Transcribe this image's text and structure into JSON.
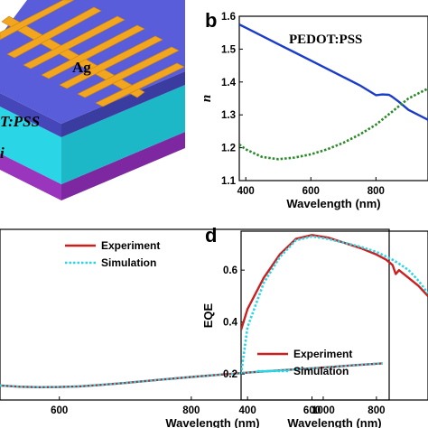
{
  "panel_a": {
    "labels": [
      "Ag",
      "T:PSS",
      "i"
    ],
    "colors": {
      "electrode": "#f2a51f",
      "top_layer": "#5a5dd9",
      "middle_layer": "#2ad6e6",
      "bottom_layer": "#a03ac2"
    }
  },
  "chart_data": [
    {
      "panel": "b",
      "type": "line",
      "annotation": "PEDOT:PSS",
      "xlabel": "Wavelength (nm)",
      "ylabel": "n",
      "xlim": [
        380,
        960
      ],
      "ylim": [
        1.1,
        1.6
      ],
      "xticks": [
        400,
        600,
        800
      ],
      "yticks": [
        1.1,
        1.2,
        1.3,
        1.4,
        1.5,
        1.6
      ],
      "series": [
        {
          "style": "solid",
          "color": "#1a3cc8",
          "x": [
            380,
            400,
            450,
            500,
            550,
            600,
            650,
            700,
            750,
            800,
            820,
            840,
            850,
            870,
            900,
            930,
            960
          ],
          "y": [
            1.575,
            1.565,
            1.54,
            1.515,
            1.49,
            1.465,
            1.44,
            1.415,
            1.39,
            1.36,
            1.362,
            1.361,
            1.355,
            1.34,
            1.315,
            1.3,
            1.285
          ]
        },
        {
          "style": "dotted",
          "color": "#2a8a2a",
          "x": [
            380,
            400,
            450,
            500,
            550,
            600,
            650,
            700,
            750,
            800,
            850,
            900,
            930,
            960
          ],
          "y": [
            1.21,
            1.195,
            1.172,
            1.165,
            1.17,
            1.18,
            1.195,
            1.215,
            1.24,
            1.27,
            1.31,
            1.35,
            1.365,
            1.38
          ]
        }
      ]
    },
    {
      "panel": "c",
      "type": "line",
      "xlabel": "Wavelength (nm)",
      "ylabel": "",
      "xlim": [
        510,
        1100
      ],
      "ylim": [
        0,
        1
      ],
      "xticks": [
        600,
        800,
        1000
      ],
      "tick_labels_x": [
        "600",
        "800",
        "1000"
      ],
      "legend": "top-right",
      "series": [
        {
          "name": "Experiment",
          "style": "solid",
          "color": "#cc1f1f",
          "x": [
            510,
            540,
            570,
            600,
            630,
            660,
            700,
            750,
            800,
            850,
            900,
            950,
            1000,
            1050,
            1090
          ],
          "y": [
            0.085,
            0.078,
            0.075,
            0.076,
            0.08,
            0.088,
            0.1,
            0.118,
            0.135,
            0.15,
            0.165,
            0.178,
            0.19,
            0.205,
            0.215
          ]
        },
        {
          "name": "Simulation",
          "style": "dotted",
          "color": "#2ad6e6",
          "x": [
            510,
            540,
            570,
            600,
            630,
            660,
            700,
            750,
            800,
            850,
            900,
            950,
            1000,
            1050,
            1090
          ],
          "y": [
            0.085,
            0.078,
            0.075,
            0.076,
            0.08,
            0.088,
            0.1,
            0.118,
            0.135,
            0.15,
            0.165,
            0.178,
            0.19,
            0.205,
            0.215
          ]
        }
      ]
    },
    {
      "panel": "d",
      "type": "line",
      "xlabel": "Wavelength (nm)",
      "ylabel": "EQE",
      "xlim": [
        380,
        960
      ],
      "ylim": [
        0.1,
        0.75
      ],
      "xticks": [
        400,
        600,
        800
      ],
      "yticks": [
        0.2,
        0.4,
        0.6
      ],
      "legend": "bottom-left",
      "series": [
        {
          "name": "Experiment",
          "style": "solid",
          "color": "#cc1f1f",
          "x": [
            380,
            400,
            450,
            500,
            550,
            600,
            650,
            700,
            750,
            800,
            830,
            850,
            860,
            870,
            900,
            930,
            960
          ],
          "y": [
            0.37,
            0.45,
            0.57,
            0.66,
            0.72,
            0.735,
            0.725,
            0.705,
            0.685,
            0.66,
            0.64,
            0.62,
            0.585,
            0.6,
            0.57,
            0.54,
            0.5
          ]
        },
        {
          "name": "Simulation",
          "style": "dotted",
          "color": "#2ad6e6",
          "x": [
            380,
            400,
            450,
            500,
            550,
            600,
            650,
            700,
            750,
            800,
            850,
            870,
            900,
            930,
            960
          ],
          "y": [
            0.2,
            0.38,
            0.55,
            0.65,
            0.715,
            0.73,
            0.72,
            0.705,
            0.69,
            0.67,
            0.64,
            0.625,
            0.6,
            0.56,
            0.51
          ]
        }
      ]
    }
  ],
  "panel_b_letter": "b",
  "panel_d_letter": "d"
}
